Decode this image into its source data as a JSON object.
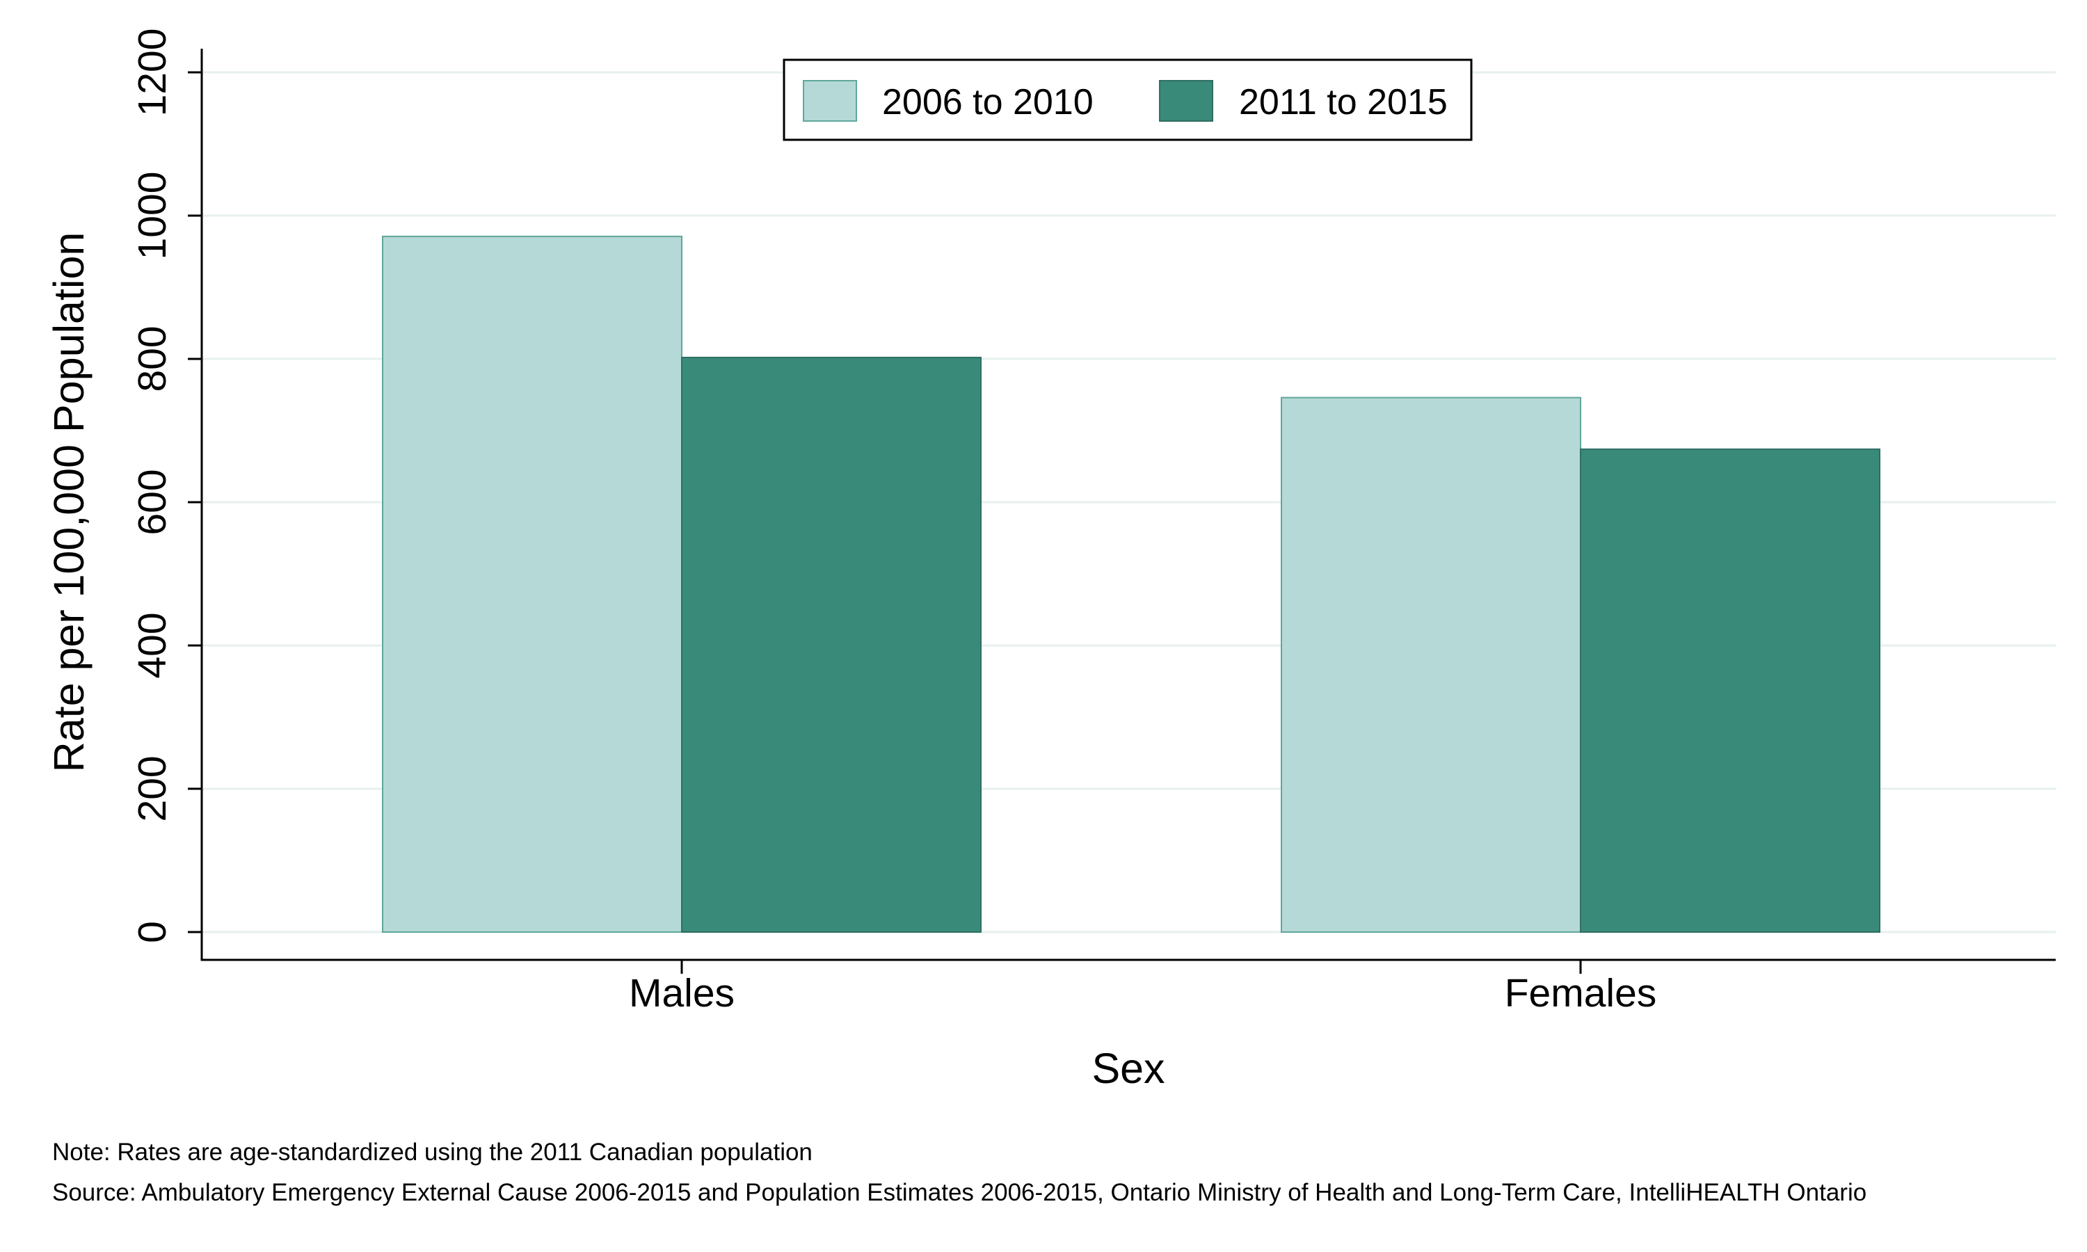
{
  "chart_data": {
    "type": "bar",
    "categories": [
      "Males",
      "Females"
    ],
    "series": [
      {
        "name": "2006 to 2010",
        "color": "#b5d9d6",
        "values": [
          971,
          746
        ]
      },
      {
        "name": "2011 to 2015",
        "color": "#3a8a7a",
        "values": [
          802,
          674
        ]
      }
    ],
    "title": "",
    "xlabel": "Sex",
    "ylabel": "Rate per 100,000 Population",
    "ylim": [
      0,
      1200
    ],
    "yticks": [
      0,
      200,
      400,
      600,
      800,
      1000,
      1200
    ],
    "grid": true,
    "legend_position": "top-center",
    "colors": {
      "grid": "#e6f0ee",
      "axis": "#000000",
      "bar_outline_light": "#5fa79a",
      "bar_outline_dark": "#2e6f62"
    }
  },
  "footnotes": {
    "note": "Note: Rates are age-standardized using the 2011 Canadian population",
    "source": "Source: Ambulatory Emergency External Cause 2006-2015 and Population Estimates 2006-2015, Ontario Ministry of Health and Long-Term Care, IntelliHEALTH Ontario"
  }
}
